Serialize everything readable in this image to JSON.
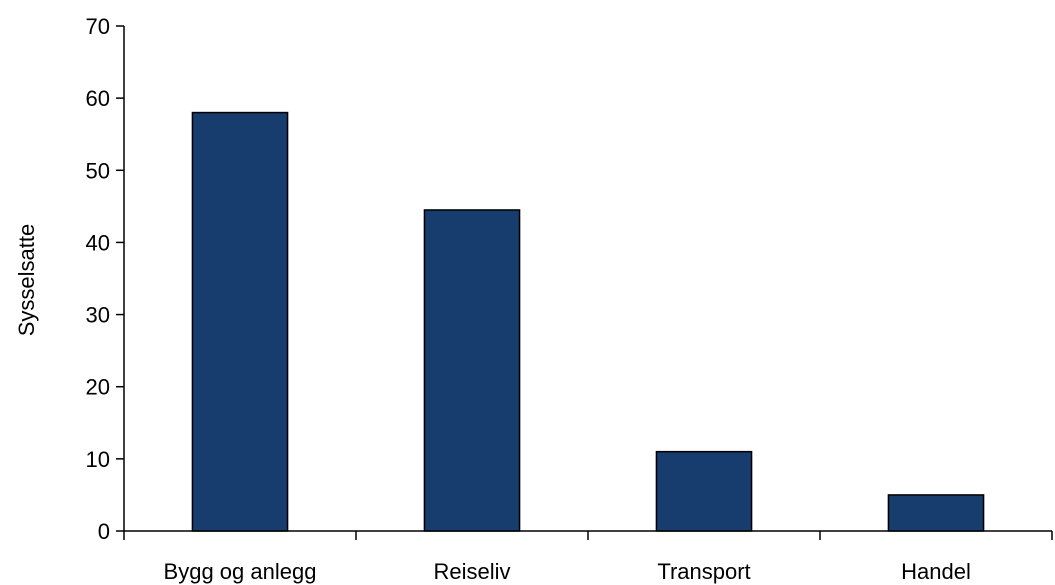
{
  "chart_data": {
    "type": "bar",
    "title": "",
    "xlabel": "",
    "ylabel": "Sysselsatte",
    "categories": [
      "Bygg og anlegg",
      "Reiseliv",
      "Transport",
      "Handel"
    ],
    "values": [
      58,
      44.5,
      11,
      5
    ],
    "ylim": [
      0,
      70
    ],
    "yticks": [
      "0",
      "10",
      "20",
      "30",
      "40",
      "50",
      "60",
      "70"
    ],
    "grid": false,
    "legend": "none",
    "colors": {
      "bar": "#173c6e",
      "bar_stroke": "#000000",
      "axis": "#000000"
    }
  }
}
